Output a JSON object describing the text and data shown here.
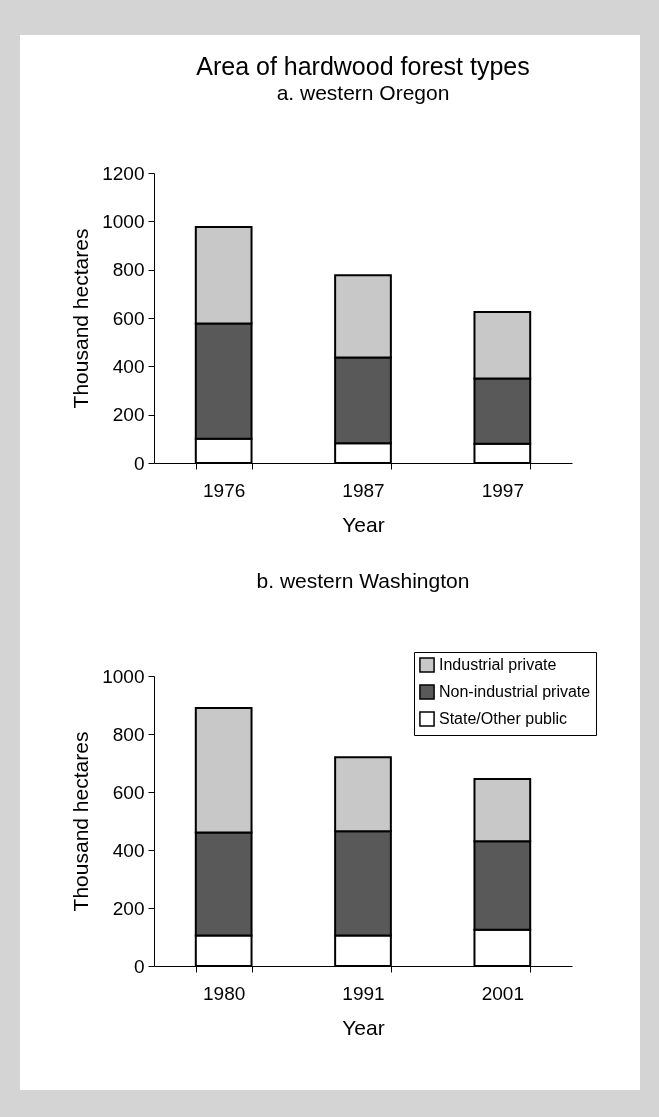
{
  "chart_data": [
    {
      "type": "bar",
      "title": "Area of hardwood forest types",
      "subtitle": "a. western Oregon",
      "xlabel": "Year",
      "ylabel": "Thousand hectares",
      "categories": [
        "1976",
        "1987",
        "1997"
      ],
      "stacked": true,
      "ylim": [
        0,
        1200
      ],
      "yticks": [
        0,
        200,
        400,
        600,
        800,
        1000,
        1200
      ],
      "series": [
        {
          "color": "#ffffff",
          "values": [
            100,
            82,
            80
          ]
        },
        {
          "color": "#595959",
          "values": [
            477,
            355,
            270
          ]
        },
        {
          "color": "#c8c8c8",
          "values": [
            400,
            340,
            275
          ]
        }
      ]
    },
    {
      "type": "bar",
      "title": "b. western Washington",
      "xlabel": "Year",
      "ylabel": "Thousand hectares",
      "categories": [
        "1980",
        "1991",
        "2001"
      ],
      "stacked": true,
      "ylim": [
        0,
        1000
      ],
      "yticks": [
        0,
        200,
        400,
        600,
        800,
        1000
      ],
      "legend": "top right",
      "series": [
        {
          "name": "State/Other public",
          "color": "#ffffff",
          "values": [
            105,
            105,
            125
          ]
        },
        {
          "name": "Non-industrial private",
          "color": "#595959",
          "values": [
            355,
            360,
            305
          ]
        },
        {
          "name": "Industrial private",
          "color": "#c8c8c8",
          "values": [
            430,
            255,
            215
          ]
        }
      ]
    }
  ]
}
